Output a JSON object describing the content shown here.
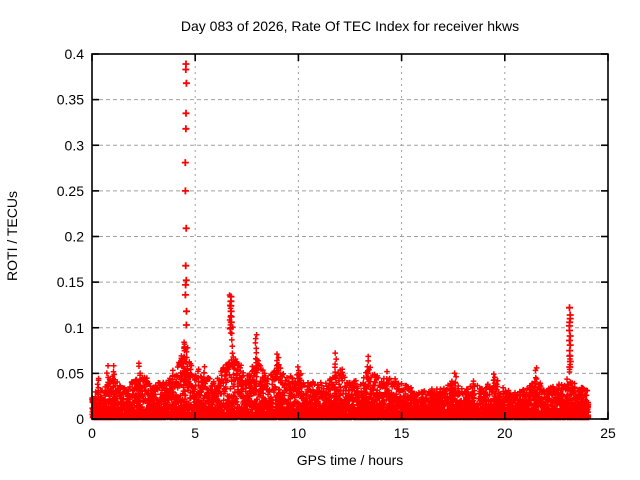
{
  "chart_data": {
    "type": "scatter",
    "title": "Day 083 of 2026, Rate Of TEC Index for receiver hkws",
    "xlabel": "GPS time / hours",
    "ylabel": "ROTI / TECUs",
    "xlim": [
      0,
      25
    ],
    "ylim": [
      0,
      0.4
    ],
    "xticks": [
      0,
      5,
      10,
      15,
      20,
      25
    ],
    "xtick_labels": [
      "0",
      "5",
      "10",
      "15",
      "20",
      "25"
    ],
    "yticks": [
      0,
      0.05,
      0.1,
      0.15,
      0.2,
      0.25,
      0.3,
      0.35,
      0.4
    ],
    "ytick_labels": [
      "0",
      "0.05",
      "0.1",
      "0.15",
      "0.2",
      "0.25",
      "0.3",
      "0.35",
      "0.4"
    ],
    "grid": true,
    "grid_style": "dashed",
    "legend": "none",
    "marker": "plus",
    "marker_color": "#ff0000",
    "grid_color": "#a0a0a0",
    "axis_color": "#000000",
    "background_color": "#ffffff",
    "data_span_hours": [
      0,
      24
    ],
    "band": {
      "description": "dense noise band of ROTI values hugging the x-axis",
      "bin_hours": 0.06,
      "points_per_bin": 16,
      "y_floor": 0.0015,
      "shape_power": 2.6,
      "envelope_step_hours": 0.5,
      "envelope_top": [
        0.03,
        0.032,
        0.048,
        0.034,
        0.042,
        0.05,
        0.038,
        0.042,
        0.048,
        0.08,
        0.048,
        0.048,
        0.04,
        0.065,
        0.07,
        0.048,
        0.068,
        0.044,
        0.062,
        0.048,
        0.052,
        0.042,
        0.04,
        0.046,
        0.058,
        0.04,
        0.044,
        0.058,
        0.044,
        0.046,
        0.04,
        0.034,
        0.03,
        0.034,
        0.033,
        0.044,
        0.033,
        0.042,
        0.034,
        0.046,
        0.033,
        0.029,
        0.033,
        0.046,
        0.033,
        0.037,
        0.044,
        0.038,
        0.032
      ]
    },
    "spike_columns": [
      {
        "x": 0.3,
        "y0": 0.033,
        "y1": 0.046,
        "n": 4
      },
      {
        "x": 0.75,
        "y0": 0.04,
        "y1": 0.057,
        "n": 4
      },
      {
        "x": 1.05,
        "y0": 0.04,
        "y1": 0.058,
        "n": 5
      },
      {
        "x": 2.3,
        "y0": 0.042,
        "y1": 0.061,
        "n": 5
      },
      {
        "x": 3.9,
        "y0": 0.04,
        "y1": 0.053,
        "n": 4
      },
      {
        "x": 4.45,
        "y0": 0.055,
        "y1": 0.085,
        "n": 9
      },
      {
        "x": 4.6,
        "y0": 0.05,
        "y1": 0.078,
        "n": 7
      },
      {
        "x": 5.15,
        "y0": 0.04,
        "y1": 0.056,
        "n": 4
      },
      {
        "x": 5.45,
        "y0": 0.042,
        "y1": 0.056,
        "n": 5
      },
      {
        "x": 6.7,
        "y0": 0.095,
        "y1": 0.134,
        "n": 9
      },
      {
        "x": 6.8,
        "y0": 0.06,
        "y1": 0.1,
        "n": 7
      },
      {
        "x": 7.95,
        "y0": 0.06,
        "y1": 0.093,
        "n": 7
      },
      {
        "x": 9.0,
        "y0": 0.048,
        "y1": 0.073,
        "n": 6
      },
      {
        "x": 10.0,
        "y0": 0.042,
        "y1": 0.058,
        "n": 4
      },
      {
        "x": 11.8,
        "y0": 0.048,
        "y1": 0.071,
        "n": 6
      },
      {
        "x": 13.35,
        "y0": 0.046,
        "y1": 0.068,
        "n": 6
      },
      {
        "x": 14.3,
        "y0": 0.04,
        "y1": 0.052,
        "n": 3
      },
      {
        "x": 17.6,
        "y0": 0.038,
        "y1": 0.051,
        "n": 3
      },
      {
        "x": 19.5,
        "y0": 0.038,
        "y1": 0.05,
        "n": 4
      },
      {
        "x": 21.5,
        "y0": 0.04,
        "y1": 0.057,
        "n": 4
      },
      {
        "x": 23.15,
        "y0": 0.05,
        "y1": 0.07,
        "n": 5
      }
    ],
    "outliers": [
      {
        "x": 4.55,
        "ys": [
          0.389,
          0.383,
          0.368,
          0.335,
          0.318,
          0.281,
          0.25,
          0.209,
          0.168,
          0.152,
          0.147,
          0.136,
          0.118,
          0.103
        ]
      },
      {
        "x": 6.72,
        "ys": [
          0.134,
          0.129,
          0.124,
          0.118,
          0.112,
          0.106,
          0.099
        ]
      },
      {
        "x": 23.15,
        "ys": [
          0.122,
          0.114,
          0.11,
          0.106,
          0.102,
          0.097,
          0.091,
          0.086,
          0.081,
          0.075,
          0.069,
          0.063,
          0.057
        ]
      }
    ]
  }
}
